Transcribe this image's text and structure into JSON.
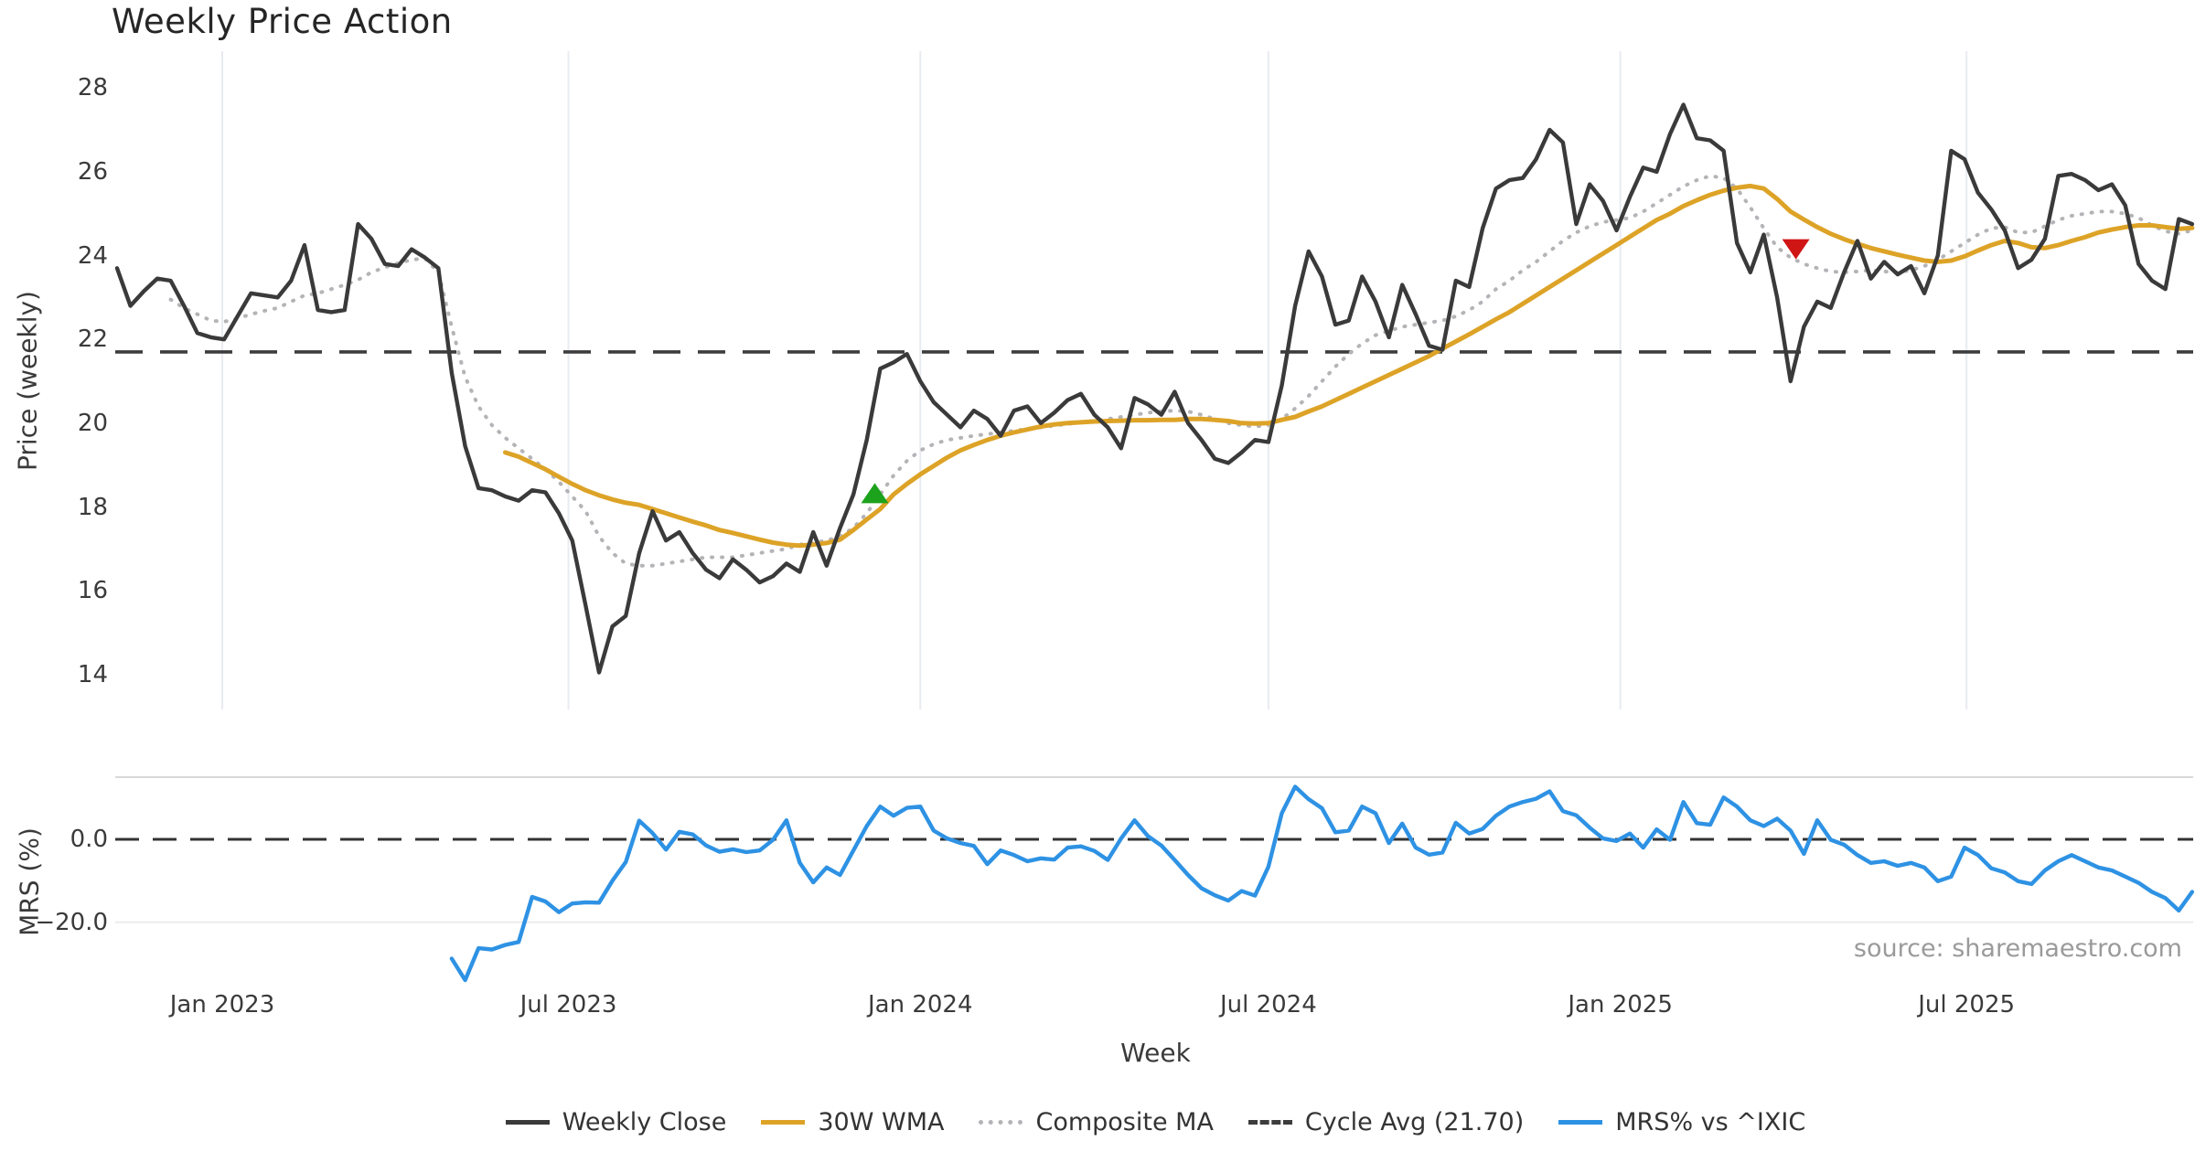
{
  "title": "Weekly Price Action",
  "source_note": "source: sharemaestro.com",
  "axes": {
    "price_axis_label": "Price (weekly)",
    "mrs_axis_label": "MRS (%)",
    "x_axis_label": "Week",
    "price_ticks": [
      {
        "label": "28",
        "value": 28
      },
      {
        "label": "26",
        "value": 26
      },
      {
        "label": "24",
        "value": 24
      },
      {
        "label": "22",
        "value": 22
      },
      {
        "label": "20",
        "value": 20
      },
      {
        "label": "18",
        "value": 18
      },
      {
        "label": "16",
        "value": 16
      },
      {
        "label": "14",
        "value": 14
      }
    ],
    "mrs_ticks": [
      {
        "label": "0.0",
        "value": 0
      },
      {
        "label": "−20.0",
        "value": -20
      }
    ],
    "x_ticks": [
      {
        "label": "Jan 2023",
        "week": 7.857
      },
      {
        "label": "Jul 2023",
        "week": 33.714
      },
      {
        "label": "Jan 2024",
        "week": 60.0
      },
      {
        "label": "Jul 2024",
        "week": 86.0
      },
      {
        "label": "Jan 2025",
        "week": 112.286
      },
      {
        "label": "Jul 2025",
        "week": 138.143
      }
    ]
  },
  "legend": [
    {
      "label": "Weekly Close",
      "style": "solid",
      "color": "#3a3a3a"
    },
    {
      "label": "30W WMA",
      "style": "solid",
      "color": "#dda327"
    },
    {
      "label": "Composite MA",
      "style": "dotted",
      "color": "#b4b4b8"
    },
    {
      "label": "Cycle Avg (21.70)",
      "style": "dashed",
      "color": "#3d3d3d"
    },
    {
      "label": "MRS% vs ^IXIC",
      "style": "solid",
      "color": "#2e92e4"
    }
  ],
  "colors": {
    "weekly_close": "#3a3a3a",
    "wma30": "#dda327",
    "composite_ma": "#b4b4b8",
    "cycle_avg": "#3d3d3d",
    "mrs": "#2e92e4",
    "buy_marker": "#1da21d",
    "sell_marker": "#d01515",
    "gridline_vertical": "#e8ebf0",
    "gridline_horizontal": "#ebebeb",
    "panel_border": "#d9d9d9"
  },
  "chart_data": {
    "type": "line",
    "x_unit": "week_index",
    "weeks_total": 156,
    "top_panel": {
      "ylabel": "Price (weekly)",
      "ylim": [
        13.2,
        28.9
      ],
      "cycle_avg_value": 21.7,
      "series": [
        {
          "name": "Weekly Close",
          "start_week": 0,
          "values": [
            23.7,
            22.8,
            23.15,
            23.45,
            23.4,
            22.8,
            22.15,
            22.05,
            22.0,
            22.55,
            23.1,
            23.05,
            23.0,
            23.4,
            24.25,
            22.7,
            22.65,
            22.7,
            24.75,
            24.4,
            23.8,
            23.75,
            24.15,
            23.95,
            23.7,
            21.2,
            19.45,
            18.45,
            18.4,
            18.25,
            18.15,
            18.4,
            18.35,
            17.85,
            17.2,
            15.65,
            14.05,
            15.15,
            15.4,
            16.9,
            17.9,
            17.2,
            17.4,
            16.9,
            16.5,
            16.3,
            16.75,
            16.5,
            16.2,
            16.35,
            16.65,
            16.45,
            17.4,
            16.6,
            17.5,
            18.3,
            19.6,
            21.3,
            21.45,
            21.65,
            21.0,
            20.5,
            20.2,
            19.9,
            20.3,
            20.1,
            19.7,
            20.3,
            20.4,
            20.0,
            20.25,
            20.55,
            20.7,
            20.2,
            19.9,
            19.4,
            20.6,
            20.45,
            20.2,
            20.75,
            20.0,
            19.6,
            19.15,
            19.05,
            19.3,
            19.6,
            19.55,
            20.9,
            22.8,
            24.1,
            23.5,
            22.35,
            22.45,
            23.5,
            22.9,
            22.05,
            23.3,
            22.6,
            21.85,
            21.75,
            23.4,
            23.25,
            24.65,
            25.6,
            25.8,
            25.85,
            26.3,
            27.0,
            26.7,
            24.75,
            25.7,
            25.3,
            24.6,
            25.4,
            26.1,
            26.0,
            26.9,
            27.6,
            26.8,
            26.75,
            26.5,
            24.3,
            23.6,
            24.5,
            23.0,
            21.0,
            22.3,
            22.9,
            22.75,
            23.6,
            24.35,
            23.45,
            23.85,
            23.55,
            23.75,
            23.1,
            24.0,
            26.5,
            26.3,
            25.5,
            25.1,
            24.6,
            23.7,
            23.9,
            24.4,
            25.9,
            25.95,
            25.8,
            25.56,
            25.7,
            25.2,
            23.8,
            23.4,
            23.2,
            24.87,
            24.75
          ]
        },
        {
          "name": "30W WMA",
          "start_week": 29,
          "values": [
            19.3,
            19.2,
            19.05,
            18.9,
            18.72,
            18.55,
            18.4,
            18.28,
            18.18,
            18.1,
            18.05,
            17.95,
            17.85,
            17.75,
            17.65,
            17.56,
            17.45,
            17.38,
            17.3,
            17.22,
            17.15,
            17.1,
            17.08,
            17.1,
            17.14,
            17.22,
            17.45,
            17.7,
            17.95,
            18.3,
            18.55,
            18.78,
            18.98,
            19.18,
            19.35,
            19.48,
            19.6,
            19.7,
            19.78,
            19.85,
            19.92,
            19.97,
            20.0,
            20.02,
            20.04,
            20.05,
            20.06,
            20.07,
            20.07,
            20.08,
            20.08,
            20.1,
            20.1,
            20.08,
            20.05,
            20.0,
            19.99,
            20.0,
            20.08,
            20.15,
            20.28,
            20.4,
            20.55,
            20.7,
            20.85,
            21.0,
            21.15,
            21.3,
            21.45,
            21.6,
            21.78,
            21.95,
            22.12,
            22.3,
            22.48,
            22.65,
            22.85,
            23.05,
            23.25,
            23.45,
            23.65,
            23.85,
            24.05,
            24.25,
            24.45,
            24.65,
            24.85,
            25.0,
            25.18,
            25.32,
            25.45,
            25.55,
            25.62,
            25.66,
            25.6,
            25.35,
            25.05,
            24.86,
            24.68,
            24.52,
            24.39,
            24.28,
            24.18,
            24.1,
            24.02,
            23.95,
            23.88,
            23.85,
            23.88,
            23.98,
            24.12,
            24.25,
            24.35,
            24.3,
            24.2,
            24.18,
            24.25,
            24.35,
            24.44,
            24.55,
            24.62,
            24.68,
            24.72,
            24.72,
            24.68,
            24.64,
            24.66
          ]
        },
        {
          "name": "Composite MA",
          "start_week": 4,
          "values": [
            22.95,
            22.75,
            22.6,
            22.45,
            22.42,
            22.5,
            22.6,
            22.68,
            22.75,
            22.9,
            23.05,
            23.1,
            23.2,
            23.3,
            23.42,
            23.6,
            23.72,
            23.82,
            23.9,
            23.93,
            23.6,
            22.3,
            21.1,
            20.4,
            19.95,
            19.65,
            19.4,
            19.15,
            18.9,
            18.6,
            18.25,
            17.9,
            17.3,
            16.9,
            16.65,
            16.6,
            16.6,
            16.65,
            16.7,
            16.75,
            16.8,
            16.8,
            16.8,
            16.85,
            16.9,
            16.95,
            17.0,
            17.1,
            17.15,
            17.2,
            17.3,
            17.5,
            17.85,
            18.3,
            18.75,
            19.1,
            19.35,
            19.5,
            19.6,
            19.65,
            19.7,
            19.74,
            19.78,
            19.82,
            19.86,
            19.9,
            19.94,
            19.98,
            20.02,
            20.06,
            20.1,
            20.15,
            20.2,
            20.25,
            20.28,
            20.3,
            20.28,
            20.2,
            20.1,
            20.0,
            19.95,
            19.92,
            19.95,
            20.1,
            20.35,
            20.65,
            21.0,
            21.35,
            21.65,
            21.9,
            22.1,
            22.2,
            22.3,
            22.35,
            22.4,
            22.45,
            22.55,
            22.7,
            22.9,
            23.2,
            23.4,
            23.65,
            23.85,
            24.1,
            24.35,
            24.55,
            24.7,
            24.8,
            24.85,
            24.9,
            25.05,
            25.25,
            25.45,
            25.65,
            25.8,
            25.9,
            25.85,
            25.6,
            25.15,
            24.65,
            24.2,
            23.95,
            23.8,
            23.7,
            23.62,
            23.6,
            23.62,
            23.65,
            23.62,
            23.6,
            23.65,
            23.75,
            23.9,
            24.1,
            24.3,
            24.5,
            24.65,
            24.68,
            24.55,
            24.55,
            24.7,
            24.85,
            24.95,
            25.0,
            25.05,
            25.05,
            25.0,
            24.9,
            24.72,
            24.58,
            24.52,
            24.6
          ]
        }
      ],
      "markers": [
        {
          "name": "buy-signal",
          "shape": "triangle-up",
          "color": "#1da21d",
          "week": 56.6,
          "value": 18.33
        },
        {
          "name": "sell-signal",
          "shape": "triangle-down",
          "color": "#d01515",
          "week": 125.4,
          "value": 24.15
        }
      ]
    },
    "bottom_panel": {
      "ylabel": "MRS (%)",
      "ylim": [
        -36,
        15
      ],
      "zero_line": 0,
      "series": [
        {
          "name": "MRS% vs ^IXIC",
          "start_week": 25,
          "values": [
            -28.8,
            -34.0,
            -26.3,
            -26.6,
            -25.5,
            -24.8,
            -13.9,
            -15.0,
            -17.6,
            -15.5,
            -15.2,
            -15.3,
            -10.0,
            -5.5,
            4.5,
            1.5,
            -2.5,
            1.8,
            1.2,
            -1.5,
            -3.0,
            -2.4,
            -3.1,
            -2.7,
            -0.1,
            4.6,
            -5.7,
            -10.4,
            -6.8,
            -8.6,
            -2.7,
            3.2,
            7.9,
            5.7,
            7.6,
            7.9,
            2.1,
            0.2,
            -0.9,
            -1.6,
            -6.0,
            -2.7,
            -3.8,
            -5.3,
            -4.6,
            -4.9,
            -2.0,
            -1.7,
            -2.8,
            -5.0,
            0.2,
            4.6,
            0.8,
            -1.5,
            -5.0,
            -8.6,
            -11.8,
            -13.5,
            -14.8,
            -12.5,
            -13.6,
            -6.6,
            6.3,
            12.7,
            9.7,
            7.5,
            1.7,
            2.1,
            7.9,
            6.3,
            -0.9,
            3.8,
            -2.0,
            -3.7,
            -3.2,
            4.0,
            1.4,
            2.5,
            5.7,
            7.9,
            9.0,
            9.8,
            11.6,
            6.8,
            5.8,
            2.8,
            0.2,
            -0.4,
            1.4,
            -2.0,
            2.4,
            -0.1,
            9.0,
            3.9,
            3.5,
            10.1,
            7.9,
            4.6,
            3.2,
            5.0,
            2.1,
            -3.5,
            4.6,
            -0.1,
            -1.3,
            -3.8,
            -5.7,
            -5.3,
            -6.4,
            -5.7,
            -6.8,
            -10.1,
            -9.0,
            -2.0,
            -3.8,
            -7.0,
            -8.0,
            -10.1,
            -10.8,
            -7.5,
            -5.3,
            -3.8,
            -5.3,
            -6.8,
            -7.5,
            -9.0,
            -10.5,
            -12.7,
            -14.2,
            -17.2,
            -12.7
          ]
        }
      ]
    }
  }
}
